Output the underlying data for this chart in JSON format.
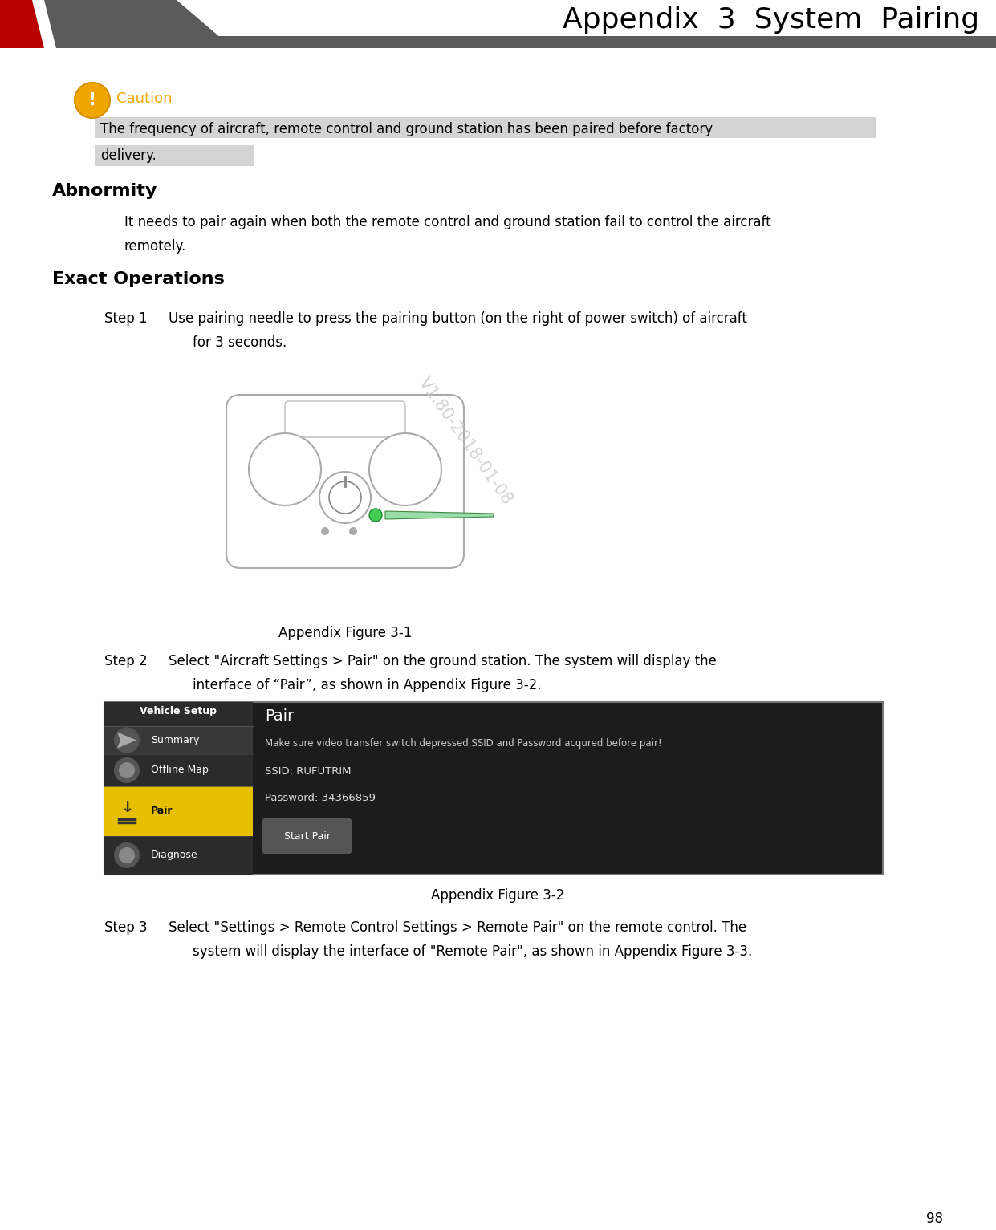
{
  "page_title": "Appendix  3  System  Pairing",
  "page_number": "98",
  "bg_color": "#ffffff",
  "header_bar_color": "#5a5a5a",
  "header_red_color": "#bb0000",
  "header_title_color": "#000000",
  "caution_icon_color": "#f0a500",
  "caution_text_color": "#f0a500",
  "caution_label": "Caution",
  "caution_highlight_color": "#d4d4d4",
  "abnormity_title": "Abnormity",
  "exact_title": "Exact Operations",
  "fig1_caption": "Appendix Figure 3-1",
  "fig2_caption": "Appendix Figure 3-2",
  "fig2_bg": "#1c1c1c",
  "fig2_sidebar_dark": "#2b2b2b",
  "fig2_pair_yellow": "#e6c000",
  "fig2_separator": "#444444",
  "fig2_btn_color": "#555555",
  "step3_line1": "Select \"Settings > Remote Control Settings > Remote Pair\" on the remote control. The",
  "step3_line2": "system will display the interface of \"Remote Pair\", as shown in Appendix Figure 3-3.",
  "watermark": "V1.80-2018-01-08",
  "text_color": "#000000",
  "white": "#ffffff"
}
